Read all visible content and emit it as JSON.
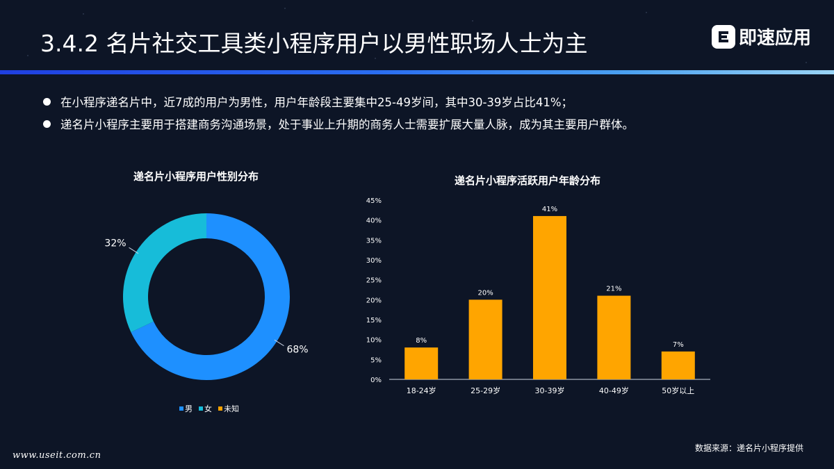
{
  "title": "3.4.2  名片社交工具类小程序用户以男性职场人士为主",
  "logo": {
    "text": "即速应用",
    "mark": "e-logo-icon"
  },
  "bullets": [
    "在小程序递名片中，近7成的用户为男性，用户年龄段主要集中25-49岁间，其中30-39岁占比41%；",
    "递名片小程序主要用于搭建商务沟通场景，处于事业上升期的商务人士需要扩展大量人脉，成为其主要用户群体。"
  ],
  "source": "数据来源：递名片小程序提供",
  "site": "www.useit.com.cn",
  "colors": {
    "male": "#1e90ff",
    "female": "#17bcd9",
    "unknown": "#f5a100",
    "bar": "#ffa500",
    "background": "#0d1526"
  },
  "chart_data": [
    {
      "type": "pie",
      "title": "递名片小程序用户性别分布",
      "labels": [
        "男",
        "女",
        "未知"
      ],
      "values": [
        68,
        32,
        0
      ],
      "value_labels": [
        "68%",
        "32%",
        ""
      ],
      "legend_position": "bottom"
    },
    {
      "type": "bar",
      "title": "递名片小程序活跃用户年龄分布",
      "categories": [
        "18-24岁",
        "25-29岁",
        "30-39岁",
        "40-49岁",
        "50岁以上"
      ],
      "values": [
        8,
        20,
        41,
        21,
        7
      ],
      "value_labels": [
        "8%",
        "20%",
        "41%",
        "21%",
        "7%"
      ],
      "ylim": [
        0,
        45
      ],
      "yticks": [
        "0%",
        "5%",
        "10%",
        "15%",
        "20%",
        "25%",
        "30%",
        "35%",
        "40%",
        "45%"
      ],
      "grid": false
    }
  ]
}
